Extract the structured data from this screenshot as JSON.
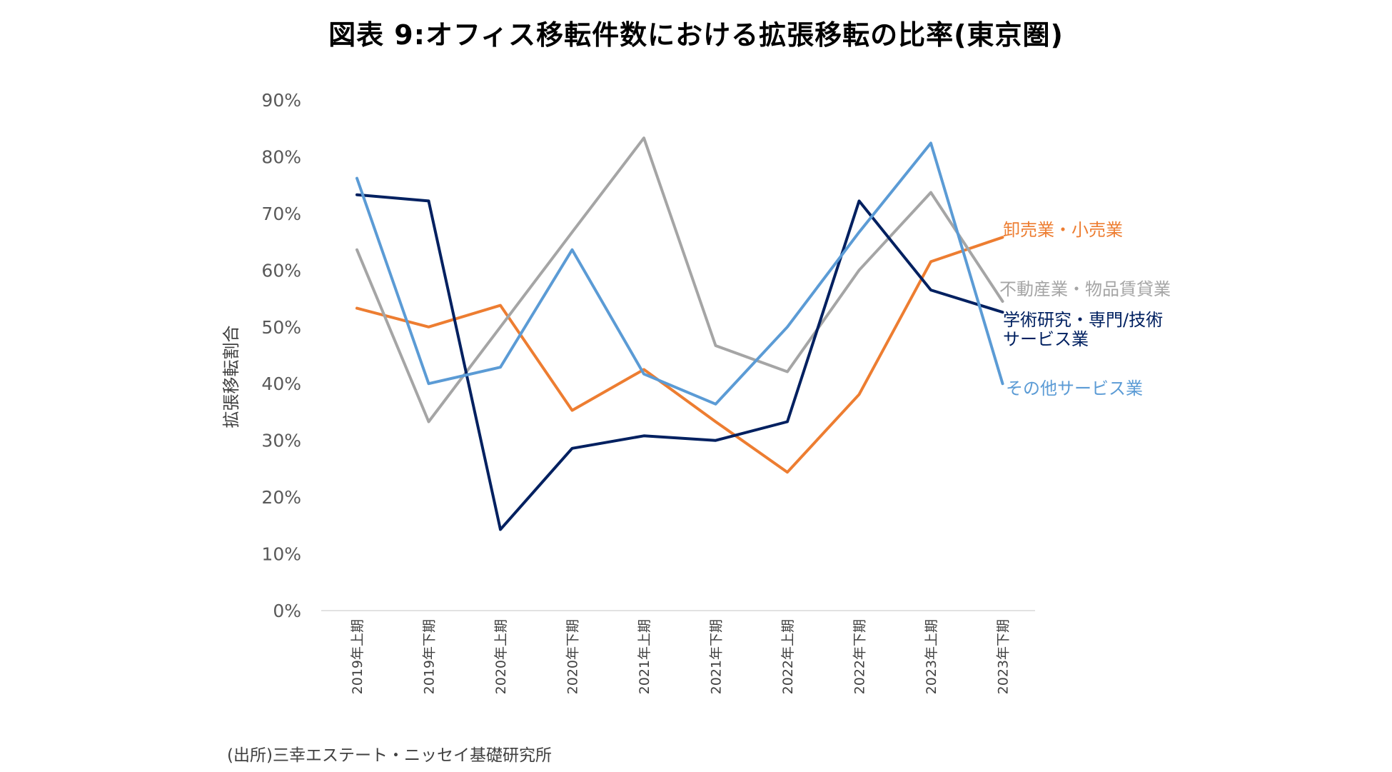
{
  "title": "図表 9:オフィス移転件数における拡張移転の比率(東京圏)",
  "source": "(出所)三幸エステート・ニッセイ基礎研究所",
  "chart_data": {
    "type": "line",
    "title": "図表 9:オフィス移転件数における拡張移転の比率(東京圏)",
    "xlabel": "",
    "ylabel": "拡張移転割合",
    "ylim": [
      0,
      90
    ],
    "yticks": [
      "0%",
      "10%",
      "20%",
      "30%",
      "40%",
      "50%",
      "60%",
      "70%",
      "80%",
      "90%"
    ],
    "grid": false,
    "legend": "inline-right",
    "categories": [
      "2019年上期",
      "2019年下期",
      "2020年上期",
      "2020年下期",
      "2021年上期",
      "2021年下期",
      "2022年上期",
      "2022年下期",
      "2023年上期",
      "2023年下期"
    ],
    "series": [
      {
        "name": "卸売業・小売業",
        "color": "#ED7D31",
        "values": [
          53.3,
          50.0,
          53.8,
          35.3,
          42.5,
          33.3,
          24.4,
          38.1,
          61.5,
          65.8
        ]
      },
      {
        "name": "不動産業・物品賃貸業",
        "color": "#A5A5A5",
        "values": [
          63.6,
          33.3,
          50.0,
          66.7,
          83.3,
          46.7,
          42.1,
          60.0,
          73.7,
          54.5
        ]
      },
      {
        "name": "学術研究・専門/技術 サービス業",
        "name_lines": [
          "学術研究・専門/技術",
          "サービス業"
        ],
        "color": "#002060",
        "values": [
          73.3,
          72.2,
          14.3,
          28.6,
          30.8,
          30.0,
          33.3,
          72.2,
          56.5,
          52.6
        ]
      },
      {
        "name": "その他サービス業",
        "color": "#5B9BD5",
        "values": [
          76.2,
          40.0,
          42.9,
          63.6,
          41.7,
          36.4,
          50.0,
          66.7,
          82.4,
          40.0
        ]
      }
    ]
  }
}
